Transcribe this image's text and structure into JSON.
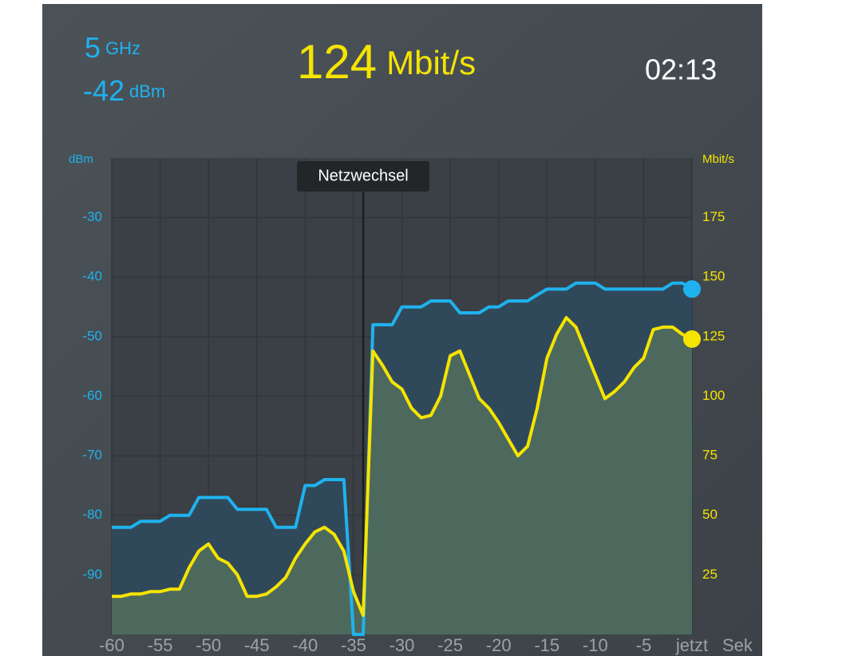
{
  "header": {
    "band": "5",
    "band_unit": "GHz",
    "signal": "-42",
    "signal_unit": "dBm",
    "speed": "124",
    "speed_unit": "Mbit/s",
    "time": "02:13"
  },
  "chart_data": {
    "type": "line",
    "x": [
      -60,
      -59,
      -58,
      -57,
      -56,
      -55,
      -54,
      -53,
      -52,
      -51,
      -50,
      -49,
      -48,
      -47,
      -46,
      -45,
      -44,
      -43,
      -42,
      -41,
      -40,
      -39,
      -38,
      -37,
      -36,
      -35,
      -34,
      -33,
      -32,
      -31,
      -30,
      -29,
      -28,
      -27,
      -26,
      -25,
      -24,
      -23,
      -22,
      -21,
      -20,
      -19,
      -18,
      -17,
      -16,
      -15,
      -14,
      -13,
      -12,
      -11,
      -10,
      -9,
      -8,
      -7,
      -6,
      -5,
      -4,
      -3,
      -2,
      -1,
      0
    ],
    "series": [
      {
        "name": "dBm",
        "color": "#1fb2ee",
        "fill": "#2f4a5c",
        "axis": "y",
        "values": [
          -82,
          -82,
          -82,
          -81,
          -81,
          -81,
          -80,
          -80,
          -80,
          -77,
          -77,
          -77,
          -77,
          -79,
          -79,
          -79,
          -79,
          -82,
          -82,
          -82,
          -75,
          -75,
          -74,
          -74,
          -74,
          -100,
          -100,
          -48,
          -48,
          -48,
          -45,
          -45,
          -45,
          -44,
          -44,
          -44,
          -46,
          -46,
          -46,
          -45,
          -45,
          -44,
          -44,
          -44,
          -43,
          -42,
          -42,
          -42,
          -41,
          -41,
          -41,
          -42,
          -42,
          -42,
          -42,
          -42,
          -42,
          -42,
          -41,
          -41,
          -42
        ]
      },
      {
        "name": "Mbit/s",
        "color": "#f5e400",
        "fill": "#4f6b5e",
        "axis": "y2",
        "values": [
          16,
          16,
          17,
          17,
          18,
          18,
          19,
          19,
          28,
          35,
          38,
          32,
          30,
          25,
          16,
          16,
          17,
          20,
          24,
          32,
          38,
          43,
          45,
          42,
          35,
          18,
          8,
          119,
          113,
          106,
          103,
          95,
          91,
          92,
          100,
          117,
          119,
          109,
          99,
          95,
          89,
          82,
          75,
          79,
          95,
          116,
          126,
          133,
          129,
          119,
          109,
          99,
          102,
          106,
          112,
          116,
          128,
          129,
          129,
          126,
          124
        ]
      }
    ],
    "xlim": [
      -60,
      0
    ],
    "xticks": [
      -60,
      -55,
      -50,
      -45,
      -40,
      -35,
      -30,
      -25,
      -20,
      -15,
      -10,
      -5,
      {
        "value": 0,
        "label": "jetzt"
      }
    ],
    "xlabel": "Sek",
    "ylim": [
      -100,
      -20
    ],
    "yticks": [
      -90,
      -80,
      -70,
      -60,
      -50,
      -40,
      -30
    ],
    "y2lim": [
      0,
      200
    ],
    "y2ticks": [
      25,
      50,
      75,
      100,
      125,
      150,
      175
    ],
    "grid": true,
    "annotation": {
      "text": "Netzwechsel",
      "x": -34
    }
  }
}
